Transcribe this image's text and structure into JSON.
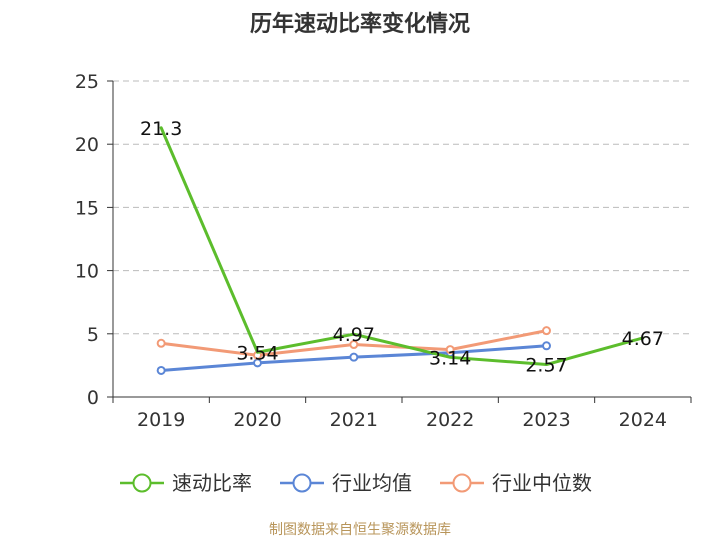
{
  "title": "历年速动比率变化情况",
  "source": "制图数据来自恒生聚源数据库",
  "chart_data": {
    "type": "line",
    "title": "历年速动比率变化情况",
    "categories": [
      "2019",
      "2020",
      "2021",
      "2022",
      "2023",
      "2024"
    ],
    "ylim": [
      0,
      25
    ],
    "yticks": [
      0,
      5,
      10,
      15,
      20,
      25
    ],
    "grid": true,
    "legend_position": "bottom",
    "series": [
      {
        "name": "速动比率",
        "color": "#5cbd2c",
        "values": [
          21.3,
          3.54,
          4.97,
          3.14,
          2.57,
          4.67
        ],
        "labels": [
          "21.3",
          "3.54",
          "4.97",
          "3.14",
          "2.57",
          "4.67"
        ],
        "show_markers": false
      },
      {
        "name": "行业均值",
        "color": "#5b86d6",
        "values": [
          2.1,
          2.7,
          3.15,
          3.5,
          4.05,
          null
        ],
        "show_markers": true
      },
      {
        "name": "行业中位数",
        "color": "#f29a76",
        "values": [
          4.25,
          3.3,
          4.15,
          3.75,
          5.25,
          null
        ],
        "show_markers": true
      }
    ]
  }
}
